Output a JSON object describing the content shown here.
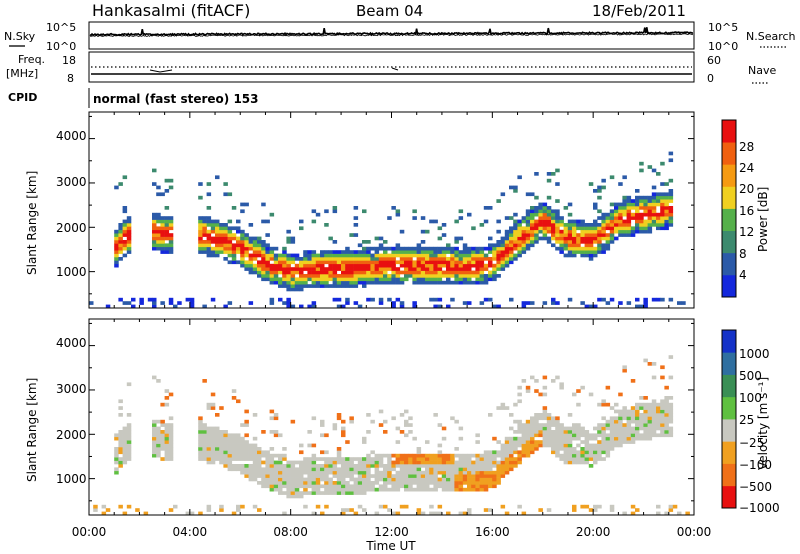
{
  "header": {
    "station": "Hankasalmi (fitACF)",
    "beam": "Beam 04",
    "date": "18/Feb/2011"
  },
  "noise_panel": {
    "left_label": "N.Sky",
    "left_ticks": [
      "10^5",
      "10^0"
    ],
    "right_label": "N.Search",
    "right_ticks": [
      "10^5",
      "10^0"
    ]
  },
  "freq_panel": {
    "left_label_line1": "Freq.",
    "left_label_line2": "[MHz]",
    "left_ticks": [
      "18",
      "8"
    ],
    "right_label": "Nave",
    "right_ticks": [
      "60",
      "0"
    ]
  },
  "cpid": {
    "label": "CPID",
    "text": "normal (fast stereo) 153"
  },
  "colors": {
    "power": [
      "#1428dc",
      "#2b5aa8",
      "#3c8a6e",
      "#55b04a",
      "#f0d020",
      "#f59a12",
      "#f06010",
      "#e81010"
    ],
    "velocity": [
      "#1432c8",
      "#2f6fa0",
      "#3a8f55",
      "#5fc040",
      "#c8c8c0",
      "#f0a020",
      "#f07018",
      "#e81010"
    ]
  },
  "chart_data": [
    {
      "type": "heatmap",
      "title": "",
      "xlabel": "",
      "ylabel": "Slant Range [km]",
      "xlim": [
        0,
        24
      ],
      "ylim": [
        180,
        4600
      ],
      "yticks": [
        "1000",
        "2000",
        "3000",
        "4000"
      ],
      "colorbar": {
        "label": "Power [dB]",
        "range": [
          0,
          32
        ],
        "ticks": [
          "4",
          "8",
          "12",
          "16",
          "20",
          "24",
          "28"
        ]
      },
      "band_center_km": [
        [
          1.0,
          1500
        ],
        [
          1.5,
          1800
        ],
        [
          2.0,
          1950
        ],
        [
          3.0,
          1850
        ],
        [
          4.0,
          1900
        ],
        [
          5.0,
          1750
        ],
        [
          6.0,
          1550
        ],
        [
          7.0,
          1200
        ],
        [
          8.0,
          1000
        ],
        [
          9.0,
          1050
        ],
        [
          10.0,
          1050
        ],
        [
          11.0,
          1100
        ],
        [
          12.0,
          1150
        ],
        [
          13.0,
          1150
        ],
        [
          14.0,
          1150
        ],
        [
          15.0,
          1100
        ],
        [
          16.0,
          1200
        ],
        [
          17.0,
          1700
        ],
        [
          18.0,
          2150
        ],
        [
          19.0,
          1750
        ],
        [
          20.0,
          1700
        ],
        [
          20.5,
          1900
        ],
        [
          21.0,
          2150
        ],
        [
          22.0,
          2300
        ],
        [
          23.0,
          2400
        ]
      ]
    },
    {
      "type": "heatmap",
      "title": "",
      "xlabel": "Time UT",
      "ylabel": "Slant Range [km]",
      "xlim": [
        0,
        24
      ],
      "ylim": [
        180,
        4600
      ],
      "xticks": [
        "00:00",
        "04:00",
        "08:00",
        "12:00",
        "16:00",
        "20:00",
        "00:00"
      ],
      "yticks": [
        "1000",
        "2000",
        "3000",
        "4000"
      ],
      "colorbar": {
        "label": "Velocity [m s⁻¹]",
        "ticks": [
          "1000",
          "500",
          "100",
          "25",
          "−25",
          "−100",
          "−500",
          "−1000"
        ]
      }
    }
  ]
}
